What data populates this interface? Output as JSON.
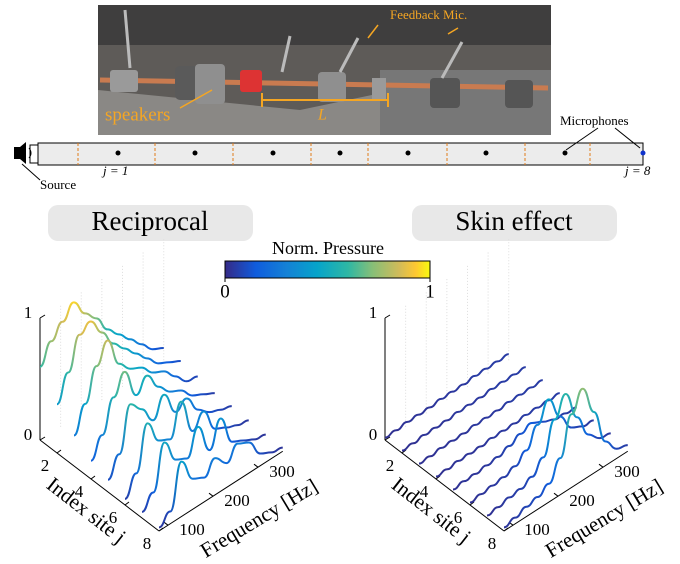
{
  "photo": {
    "mic_label": "Feedback Mic.",
    "speaker_label": "speakers",
    "length_label": "L"
  },
  "schematic": {
    "source": "Source",
    "microphones": "Microphones",
    "first_site": "j = 1",
    "last_site": "j = 8"
  },
  "colorbar": {
    "title": "Norm. Pressure",
    "ticks": [
      0,
      1
    ]
  },
  "frequencies": [
    80,
    105,
    130,
    155,
    180,
    205,
    230,
    255,
    280,
    305,
    330,
    355
  ],
  "panels": [
    {
      "title": "Reciprocal",
      "zticks": [
        0,
        1
      ],
      "index_ticks": [
        2,
        4,
        6,
        8
      ],
      "freq_ticks": [
        100,
        200,
        300
      ],
      "index_label": "Index site j",
      "freq_label": "Frequency [Hz]",
      "curves": [
        [
          0.6,
          0.75,
          0.85,
          0.95,
          0.8,
          0.7,
          0.55,
          0.45,
          0.35,
          0.25,
          0.15,
          0.1
        ],
        [
          0.4,
          0.6,
          0.85,
          0.9,
          0.75,
          0.6,
          0.5,
          0.4,
          0.3,
          0.2,
          0.15,
          0.1
        ],
        [
          0.25,
          0.45,
          0.7,
          0.85,
          0.6,
          0.5,
          0.45,
          0.35,
          0.3,
          0.2,
          0.1,
          0.08
        ],
        [
          0.15,
          0.3,
          0.55,
          0.7,
          0.45,
          0.55,
          0.4,
          0.3,
          0.25,
          0.15,
          0.1,
          0.05
        ],
        [
          0.1,
          0.25,
          0.6,
          0.5,
          0.35,
          0.5,
          0.3,
          0.35,
          0.2,
          0.12,
          0.08,
          0.05
        ],
        [
          0.05,
          0.2,
          0.55,
          0.35,
          0.3,
          0.55,
          0.25,
          0.35,
          0.15,
          0.1,
          0.06,
          0.04
        ],
        [
          0.05,
          0.15,
          0.5,
          0.3,
          0.25,
          0.45,
          0.2,
          0.4,
          0.15,
          0.1,
          0.05,
          0.03
        ],
        [
          0.03,
          0.1,
          0.45,
          0.25,
          0.2,
          0.3,
          0.2,
          0.3,
          0.25,
          0.1,
          0.05,
          0.03
        ]
      ]
    },
    {
      "title": "Skin effect",
      "zticks": [
        0,
        1
      ],
      "index_ticks": [
        2,
        4,
        6,
        8
      ],
      "freq_ticks": [
        100,
        200,
        300
      ],
      "index_label": "Index site j",
      "freq_label": "Frequency [Hz]",
      "curves": [
        [
          0.02,
          0.02,
          0.03,
          0.03,
          0.03,
          0.04,
          0.04,
          0.04,
          0.05,
          0.05,
          0.05,
          0.05
        ],
        [
          0.02,
          0.02,
          0.03,
          0.03,
          0.03,
          0.04,
          0.04,
          0.04,
          0.05,
          0.05,
          0.05,
          0.05
        ],
        [
          0.02,
          0.02,
          0.03,
          0.03,
          0.03,
          0.04,
          0.04,
          0.04,
          0.05,
          0.05,
          0.05,
          0.05
        ],
        [
          0.02,
          0.02,
          0.03,
          0.03,
          0.03,
          0.04,
          0.04,
          0.04,
          0.05,
          0.05,
          0.05,
          0.05
        ],
        [
          0.02,
          0.03,
          0.03,
          0.04,
          0.05,
          0.08,
          0.12,
          0.15,
          0.1,
          0.06,
          0.05,
          0.04
        ],
        [
          0.02,
          0.03,
          0.04,
          0.05,
          0.08,
          0.15,
          0.3,
          0.45,
          0.25,
          0.1,
          0.05,
          0.04
        ],
        [
          0.02,
          0.03,
          0.05,
          0.06,
          0.1,
          0.2,
          0.45,
          0.6,
          0.35,
          0.15,
          0.06,
          0.04
        ],
        [
          0.03,
          0.05,
          0.08,
          0.1,
          0.15,
          0.3,
          0.6,
          0.75,
          0.5,
          0.2,
          0.08,
          0.05
        ]
      ]
    }
  ]
}
